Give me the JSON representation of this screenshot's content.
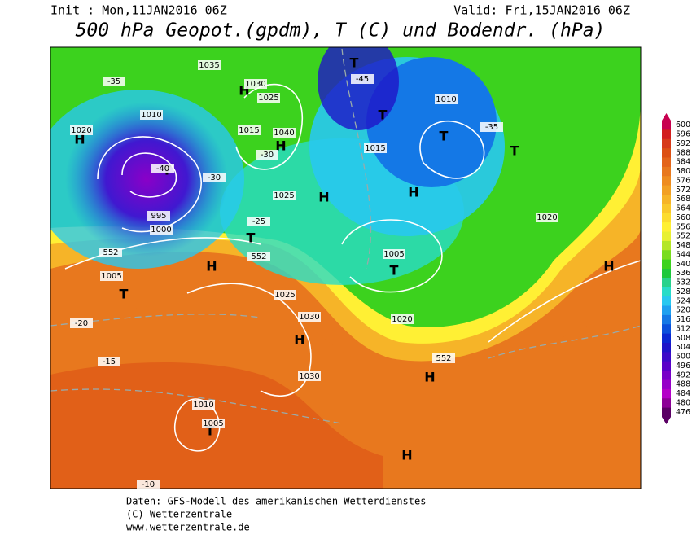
{
  "header": {
    "init": "Init : Mon,11JAN2016 06Z",
    "valid": "Valid: Fri,15JAN2016 06Z",
    "title": "500 hPa Geopot.(gpdm), T (C) und Bodendr. (hPa)"
  },
  "legend": {
    "levels": [
      600,
      596,
      592,
      588,
      584,
      580,
      576,
      572,
      568,
      564,
      560,
      556,
      552,
      548,
      544,
      540,
      536,
      532,
      528,
      524,
      520,
      516,
      512,
      508,
      504,
      500,
      496,
      492,
      488,
      484,
      480,
      476
    ],
    "colors": [
      "#c80050",
      "#d21e1e",
      "#d73a1a",
      "#dc5014",
      "#e3641a",
      "#e8781e",
      "#ee8c20",
      "#f2a024",
      "#f6b428",
      "#f9c82c",
      "#fcdc30",
      "#fff034",
      "#e8f032",
      "#b4e628",
      "#78dc1e",
      "#3cd21e",
      "#1ec83c",
      "#28d28c",
      "#28dcc8",
      "#28c8f0",
      "#1ea0f0",
      "#1478e6",
      "#0a50dc",
      "#0a28d2",
      "#1e14c8",
      "#3c0ac8",
      "#5a00c8",
      "#7800c8",
      "#9600c8",
      "#b400c8",
      "#8c0096",
      "#5a0064"
    ]
  },
  "map_labels": [
    "H",
    "T",
    "H",
    "T",
    "H",
    "T",
    "H",
    "T",
    "H",
    "T",
    "H",
    "H",
    "T",
    "H",
    "T",
    "H",
    "T",
    "H",
    "T",
    "1035",
    "1025",
    "1020",
    "1010",
    "995",
    "1000",
    "1005",
    "1030",
    "1040",
    "1015",
    "1025",
    "1020",
    "1010",
    "1015",
    "1005",
    "1025",
    "1030",
    "1010",
    "1005",
    "1020",
    "1030",
    "-40",
    "-35",
    "-30",
    "-25",
    "-20",
    "-15",
    "-10",
    "-45",
    "-35",
    "-30",
    "552",
    "552",
    "552"
  ],
  "footer": {
    "source": "Daten: GFS-Modell des amerikanischen Wetterdienstes",
    "copyright": "(C) Wetterzentrale",
    "url": "www.wetterzentrale.de"
  }
}
